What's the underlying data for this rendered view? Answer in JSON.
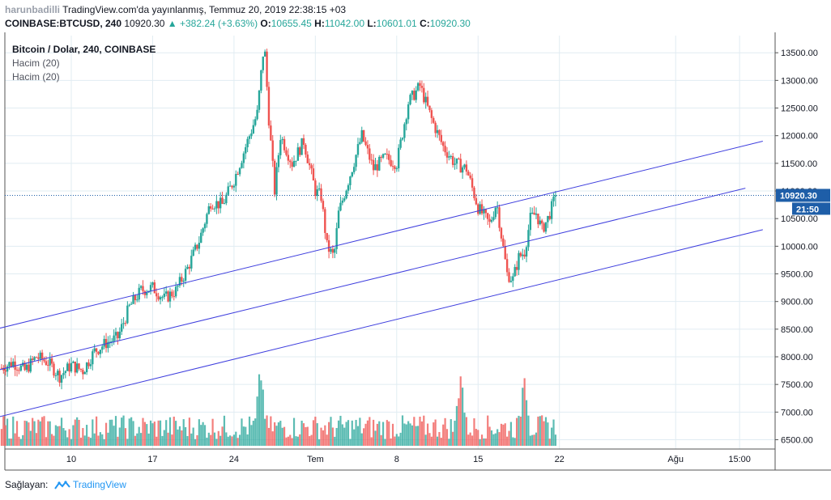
{
  "header": {
    "author": "harunbadilli",
    "published": "TradingView.com'da yayınlanmış, Temmuz 20, 2019 22:38:15 +03",
    "symbol": "COINBASE:BTCUSD, 240",
    "price": "10920.30",
    "change": "▲ +382.24 (+3.63%)",
    "o_label": "O:",
    "o_value": "10655.45",
    "h_label": "H:",
    "h_value": "11042.00",
    "l_label": "L:",
    "l_value": "10601.01",
    "c_label": "C:",
    "c_value": "10920.30"
  },
  "legend": {
    "title": "Bitcoin / Dolar, 240, COINBASE",
    "indicator1": "Hacim (20)",
    "indicator2": "Hacim (20)"
  },
  "footer": {
    "prefix": "Sağlayan:",
    "brand": "TradingView"
  },
  "colors": {
    "up": "#26a69a",
    "down": "#ef5350",
    "trendline": "#3f3fde",
    "grid": "#e1ecf2",
    "price_label": "#1e5ea8"
  },
  "chart_data": {
    "type": "candlestick",
    "ylim": [
      6350,
      13850
    ],
    "y_ticks": [
      "13500.00",
      "13000.00",
      "12500.00",
      "12000.00",
      "11500.00",
      "11000.00",
      "10500.00",
      "10000.00",
      "9500.00",
      "9000.00",
      "8500.00",
      "8000.00",
      "7500.00",
      "7000.00",
      "6500.00"
    ],
    "y_tick_values": [
      13500,
      13000,
      12500,
      12000,
      11500,
      11000,
      10500,
      10000,
      9500,
      9000,
      8500,
      8000,
      7500,
      7000,
      6500
    ],
    "x_ticks": [
      "10",
      "17",
      "24",
      "Tem",
      "8",
      "15",
      "22",
      "Ağu",
      "15:00"
    ],
    "x_tick_days": [
      10,
      17,
      24,
      31,
      38,
      45,
      52,
      62,
      67.5
    ],
    "last_price": "10920.30",
    "last_price_value": 10920.3,
    "countdown": "21:50",
    "ohlc_anchors": [
      {
        "day": 4.0,
        "close": 7800
      },
      {
        "day": 5.0,
        "close": 7900
      },
      {
        "day": 6.0,
        "close": 7750
      },
      {
        "day": 7.0,
        "close": 8000
      },
      {
        "day": 8.0,
        "close": 7900
      },
      {
        "day": 9.0,
        "close": 7650
      },
      {
        "day": 10.0,
        "close": 7850
      },
      {
        "day": 11.0,
        "close": 7750
      },
      {
        "day": 12.0,
        "close": 8100
      },
      {
        "day": 13.0,
        "close": 8250
      },
      {
        "day": 14.0,
        "close": 8350
      },
      {
        "day": 15.0,
        "close": 8900
      },
      {
        "day": 16.0,
        "close": 9200
      },
      {
        "day": 17.0,
        "close": 9250
      },
      {
        "day": 18.0,
        "close": 9050
      },
      {
        "day": 19.0,
        "close": 9200
      },
      {
        "day": 20.0,
        "close": 9600
      },
      {
        "day": 21.0,
        "close": 10100
      },
      {
        "day": 22.0,
        "close": 10800
      },
      {
        "day": 23.0,
        "close": 10750
      },
      {
        "day": 24.0,
        "close": 11200
      },
      {
        "day": 25.0,
        "close": 11800
      },
      {
        "day": 26.0,
        "close": 12400
      },
      {
        "day": 26.6,
        "close": 13700
      },
      {
        "day": 27.0,
        "close": 12300
      },
      {
        "day": 27.5,
        "close": 11000
      },
      {
        "day": 28.0,
        "close": 12000
      },
      {
        "day": 29.0,
        "close": 11500
      },
      {
        "day": 30.0,
        "close": 11900
      },
      {
        "day": 31.0,
        "close": 11000
      },
      {
        "day": 31.5,
        "close": 10900
      },
      {
        "day": 32.0,
        "close": 10000
      },
      {
        "day": 32.6,
        "close": 9800
      },
      {
        "day": 33.0,
        "close": 10600
      },
      {
        "day": 34.0,
        "close": 11300
      },
      {
        "day": 35.0,
        "close": 12000
      },
      {
        "day": 36.0,
        "close": 11400
      },
      {
        "day": 37.0,
        "close": 11600
      },
      {
        "day": 38.0,
        "close": 11500
      },
      {
        "day": 39.0,
        "close": 12600
      },
      {
        "day": 40.0,
        "close": 12900
      },
      {
        "day": 41.0,
        "close": 12300
      },
      {
        "day": 42.0,
        "close": 11800
      },
      {
        "day": 43.0,
        "close": 11500
      },
      {
        "day": 44.0,
        "close": 11400
      },
      {
        "day": 45.0,
        "close": 10700
      },
      {
        "day": 46.0,
        "close": 10400
      },
      {
        "day": 46.6,
        "close": 10800
      },
      {
        "day": 47.0,
        "close": 10200
      },
      {
        "day": 47.5,
        "close": 9500
      },
      {
        "day": 48.0,
        "close": 9400
      },
      {
        "day": 48.5,
        "close": 9800
      },
      {
        "day": 49.0,
        "close": 9900
      },
      {
        "day": 49.5,
        "close": 10500
      },
      {
        "day": 50.0,
        "close": 10600
      },
      {
        "day": 50.5,
        "close": 10300
      },
      {
        "day": 51.0,
        "close": 10500
      },
      {
        "day": 51.7,
        "close": 10920
      }
    ],
    "volume_max_days": [
      26.3,
      49.0,
      43.5
    ],
    "trendlines": [
      {
        "from": {
          "day": 3.5,
          "price": 8500
        },
        "to": {
          "day": 69.5,
          "price": 11900
        }
      },
      {
        "from": {
          "day": 3.5,
          "price": 7750
        },
        "to": {
          "day": 68.0,
          "price": 11050
        }
      },
      {
        "from": {
          "day": 3.5,
          "price": 6900
        },
        "to": {
          "day": 69.5,
          "price": 10300
        }
      }
    ]
  }
}
